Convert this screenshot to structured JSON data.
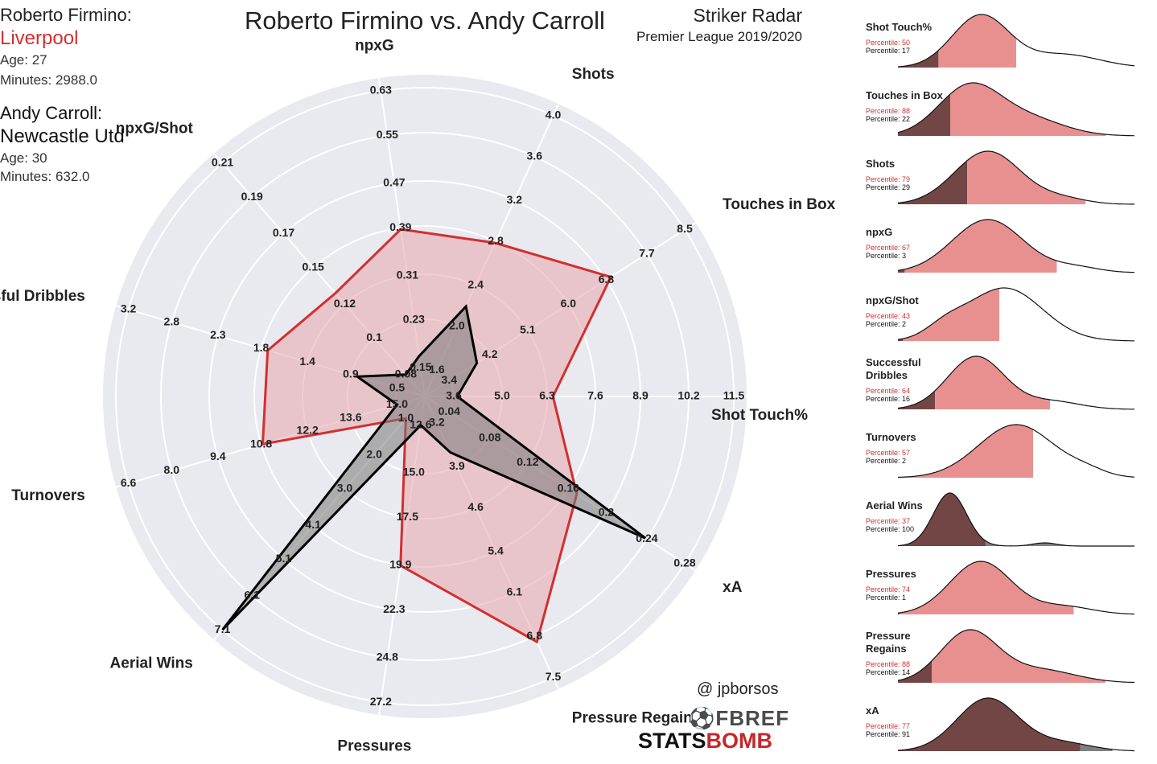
{
  "title": "Roberto Firmino vs. Andy Carroll",
  "radar_name": "Striker Radar",
  "subtitle": "Premier League 2019/2020",
  "player1": {
    "name": "Roberto Firmino:",
    "club": "Liverpool",
    "age": "Age: 27",
    "minutes": "Minutes: 2988.0",
    "color": "#d32f2f"
  },
  "player2": {
    "name": "Andy Carroll:",
    "club": "Newcastle Utd",
    "age": "Age: 30",
    "minutes": "Minutes: 632.0",
    "color": "#111111"
  },
  "credits": {
    "handle": "@ jpborsos",
    "fbref": "FBREF",
    "statsbomb_a": "STATS",
    "statsbomb_b": "BOMB"
  },
  "colors": {
    "radar_bg": "#e9e9f0",
    "grid": "#ffffff",
    "p1_fill": "#e8a5ad",
    "p1_line": "#d32f2f",
    "p2_fill": "#7a7a7a",
    "p2_line": "#000000",
    "kde_dark": "#734646",
    "kde_pink": "#e89090",
    "kde_grey": "#808080",
    "pct_red": "#d32f2f"
  },
  "chart_data": [
    {
      "type": "radar",
      "axes": [
        {
          "name": "Shot Touch%",
          "ticks": [
            "3.6",
            "5.0",
            "6.3",
            "7.6",
            "8.9",
            "10.2",
            "11.5"
          ]
        },
        {
          "name": "Touches in Box",
          "ticks": [
            "3.4",
            "4.2",
            "5.1",
            "6.0",
            "6.8",
            "7.7",
            "8.5"
          ]
        },
        {
          "name": "Shots",
          "ticks": [
            "1.6",
            "2.0",
            "2.4",
            "2.8",
            "3.2",
            "3.6",
            "4.0"
          ]
        },
        {
          "name": "npxG",
          "ticks": [
            "0.15",
            "0.23",
            "0.31",
            "0.39",
            "0.47",
            "0.55",
            "0.63"
          ]
        },
        {
          "name": "npxG/Shot",
          "ticks": [
            "0.08",
            "0.1",
            "0.12",
            "0.15",
            "0.17",
            "0.19",
            "0.21"
          ]
        },
        {
          "name": "Successful Dribbles",
          "ticks": [
            "0.5",
            "0.9",
            "1.4",
            "1.8",
            "2.3",
            "2.8",
            "3.2"
          ]
        },
        {
          "name": "Turnovers",
          "ticks": [
            "15.0",
            "13.6",
            "12.2",
            "10.8",
            "9.4",
            "8.0",
            "6.6"
          ]
        },
        {
          "name": "Aerial Wins",
          "ticks": [
            "1.0",
            "2.0",
            "3.0",
            "4.1",
            "5.1",
            "6.1",
            "7.1"
          ]
        },
        {
          "name": "Pressures",
          "ticks": [
            "12.6",
            "15.0",
            "17.5",
            "19.9",
            "22.3",
            "24.8",
            "27.2"
          ]
        },
        {
          "name": "Pressure Regains",
          "ticks": [
            "3.2",
            "3.9",
            "4.6",
            "5.4",
            "6.1",
            "6.8",
            "7.5"
          ]
        },
        {
          "name": "xA",
          "ticks": [
            "0.04",
            "0.08",
            "0.12",
            "0.16",
            "0.2",
            "0.24",
            "0.28"
          ]
        }
      ],
      "series": [
        {
          "name": "Roberto Firmino",
          "values": [
            6.4,
            6.9,
            2.8,
            0.39,
            0.13,
            1.8,
            10.8,
            1.0,
            20.0,
            6.9,
            0.17
          ]
        },
        {
          "name": "Andy Carroll",
          "values": [
            3.7,
            4.0,
            2.2,
            0.17,
            0.07,
            0.9,
            15.0,
            7.1,
            12.6,
            3.7,
            0.24
          ]
        }
      ]
    },
    {
      "type": "area",
      "description_axes": "percentile distribution strips",
      "panels": [
        {
          "label": "Shot Touch%",
          "p1_percentile": "Percentile: 50",
          "p2_percentile": "Percentile: 17",
          "p1": 0.5,
          "p2": 0.17
        },
        {
          "label": "Touches in Box",
          "p1_percentile": "Percentile: 88",
          "p2_percentile": "Percentile: 22",
          "p1": 0.88,
          "p2": 0.22
        },
        {
          "label": "Shots",
          "p1_percentile": "Percentile: 79",
          "p2_percentile": "Percentile: 29",
          "p1": 0.79,
          "p2": 0.29
        },
        {
          "label": "npxG",
          "p1_percentile": "Percentile: 67",
          "p2_percentile": "Percentile: 3",
          "p1": 0.67,
          "p2": 0.03
        },
        {
          "label": "npxG/Shot",
          "p1_percentile": "Percentile: 43",
          "p2_percentile": "Percentile: 2",
          "p1": 0.43,
          "p2": 0.02
        },
        {
          "label": "Successful Dribbles",
          "p1_percentile": "Percentile: 64",
          "p2_percentile": "Percentile: 16",
          "p1": 0.64,
          "p2": 0.16
        },
        {
          "label": "Turnovers",
          "p1_percentile": "Percentile: 57",
          "p2_percentile": "Percentile: 2",
          "p1": 0.57,
          "p2": 0.02
        },
        {
          "label": "Aerial Wins",
          "p1_percentile": "Percentile: 37",
          "p2_percentile": "Percentile: 100",
          "p1": 0.37,
          "p2": 1.0
        },
        {
          "label": "Pressures",
          "p1_percentile": "Percentile: 74",
          "p2_percentile": "Percentile: 1",
          "p1": 0.74,
          "p2": 0.01
        },
        {
          "label": "Pressure Regains",
          "p1_percentile": "Percentile: 88",
          "p2_percentile": "Percentile: 14",
          "p1": 0.88,
          "p2": 0.14
        },
        {
          "label": "xA",
          "p1_percentile": "Percentile: 77",
          "p2_percentile": "Percentile: 91",
          "p1": 0.77,
          "p2": 0.91
        }
      ]
    }
  ]
}
